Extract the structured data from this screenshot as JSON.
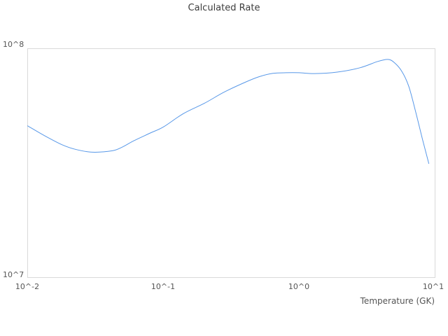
{
  "chart_data": {
    "type": "line",
    "title": "Calculated Rate",
    "xlabel": "Temperature (GK)",
    "ylabel": "",
    "x_scale": "log",
    "y_scale": "log",
    "xlim": [
      0.01,
      10
    ],
    "ylim": [
      10000000.0,
      100000000.0
    ],
    "x_tick_labels": [
      "10^-2",
      "10^-1",
      "10^0",
      "10^1"
    ],
    "y_tick_labels": [
      "10^7",
      "10^8"
    ],
    "grid": false,
    "legend": false,
    "line_color": "#5898e8",
    "border_color": "#d9d9d9",
    "series": [
      {
        "name": "Calculated Rate",
        "x": [
          0.01,
          0.013,
          0.018,
          0.023,
          0.03,
          0.042,
          0.05,
          0.06,
          0.08,
          0.1,
          0.14,
          0.2,
          0.28,
          0.4,
          0.51,
          0.64,
          0.8,
          1.0,
          1.3,
          1.9,
          2.8,
          3.8,
          4.5,
          5.0,
          5.7,
          6.4,
          7.2,
          8.1,
          9.0
        ],
        "y": [
          46000000.0,
          42000000.0,
          38000000.0,
          36200000.0,
          35300000.0,
          35800000.0,
          37200000.0,
          39500000.0,
          42800000.0,
          45500000.0,
          52000000.0,
          57700000.0,
          64600000.0,
          71300000.0,
          75500000.0,
          78000000.0,
          78500000.0,
          78500000.0,
          77800000.0,
          79000000.0,
          82500000.0,
          88000000.0,
          89700000.0,
          87000000.0,
          79500000.0,
          68500000.0,
          53000000.0,
          40000000.0,
          31500000.0
        ]
      }
    ]
  }
}
